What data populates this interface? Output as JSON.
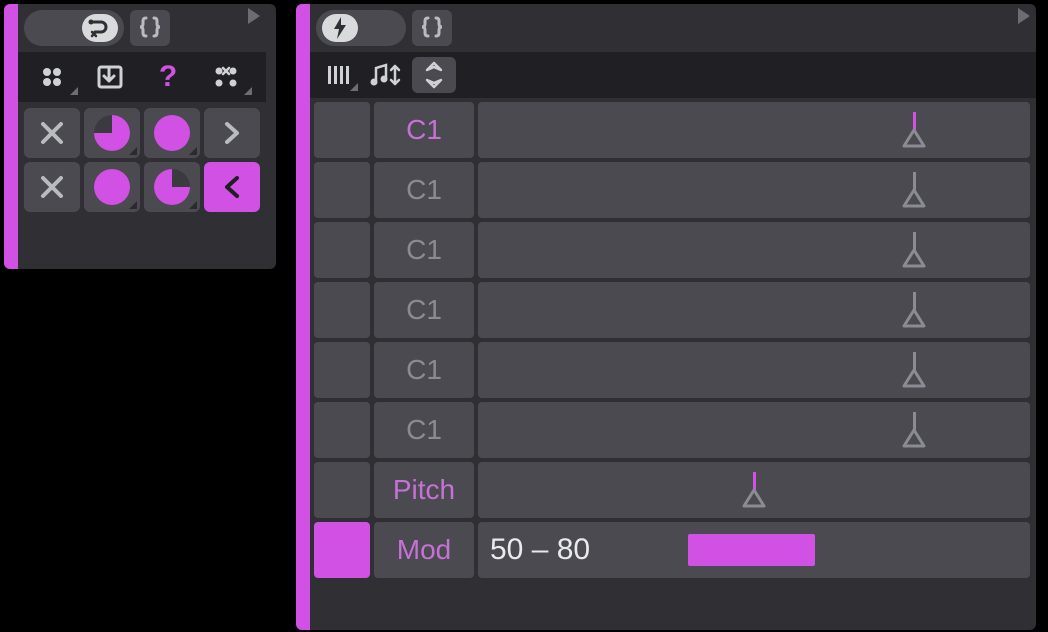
{
  "colors": {
    "accent": "#d051e3",
    "panel": "#2f2f34",
    "cell": "#4a4a50",
    "dark": "#202024",
    "text_muted": "#8b8b93",
    "icon": "#cfd1d3",
    "icon_light": "#d8dadb"
  },
  "left": {
    "header": {
      "route_icon": "route-icon",
      "braces_icon": "braces-icon",
      "play_icon": "play-icon"
    },
    "toolbar": [
      "dots4-icon",
      "import-icon",
      "question-icon",
      "dots-x-icon"
    ],
    "toolbar_accent_index": 2,
    "grid": [
      [
        {
          "icon": "x-icon",
          "style": "plain"
        },
        {
          "icon": "pie-75-icon",
          "style": "plain"
        },
        {
          "icon": "circle-full-icon",
          "style": "plain"
        },
        {
          "icon": "chevron-right-icon",
          "style": "plain"
        }
      ],
      [
        {
          "icon": "x-icon",
          "style": "plain"
        },
        {
          "icon": "circle-full-icon",
          "style": "plain"
        },
        {
          "icon": "pie-75b-icon",
          "style": "plain"
        },
        {
          "icon": "chevron-left-icon",
          "style": "magenta"
        }
      ]
    ]
  },
  "right": {
    "header": {
      "bolt_icon": "bolt-icon",
      "braces_icon": "braces-icon",
      "play_icon": "play-icon"
    },
    "toolbar": [
      "bars-icon",
      "music-updown-icon",
      "diamond-updown-icon"
    ],
    "toolbar_boxed_index": 2,
    "rows": [
      {
        "label": "C1",
        "accent": true,
        "active": false,
        "marker_pct": 79,
        "marker_accent": true,
        "range": null,
        "text": null
      },
      {
        "label": "C1",
        "accent": false,
        "active": false,
        "marker_pct": 79,
        "marker_accent": false,
        "range": null,
        "text": null
      },
      {
        "label": "C1",
        "accent": false,
        "active": false,
        "marker_pct": 79,
        "marker_accent": false,
        "range": null,
        "text": null
      },
      {
        "label": "C1",
        "accent": false,
        "active": false,
        "marker_pct": 79,
        "marker_accent": false,
        "range": null,
        "text": null
      },
      {
        "label": "C1",
        "accent": false,
        "active": false,
        "marker_pct": 79,
        "marker_accent": false,
        "range": null,
        "text": null
      },
      {
        "label": "C1",
        "accent": false,
        "active": false,
        "marker_pct": 79,
        "marker_accent": false,
        "range": null,
        "text": null
      },
      {
        "label": "Pitch",
        "accent": true,
        "active": false,
        "marker_pct": 50,
        "marker_accent": true,
        "range": null,
        "text": null
      },
      {
        "label": "Mod",
        "accent": true,
        "active": true,
        "marker_pct": null,
        "marker_accent": false,
        "range": {
          "start_pct": 38,
          "end_pct": 61
        },
        "text": "50 – 80"
      }
    ]
  }
}
